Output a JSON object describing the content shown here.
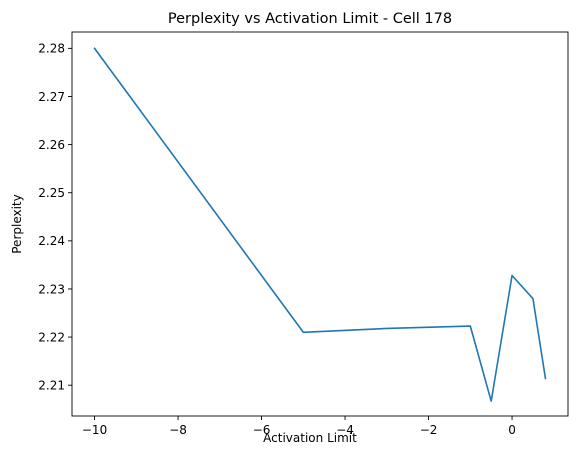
{
  "chart_data": {
    "type": "line",
    "title": "Perplexity vs Activation Limit - Cell 178",
    "xlabel": "Activation Limit",
    "ylabel": "Perplexity",
    "xlim": [
      -10.54,
      1.34
    ],
    "ylim": [
      2.2036,
      2.2834
    ],
    "xticks": [
      -10,
      -8,
      -6,
      -4,
      -2,
      0
    ],
    "xtick_labels": [
      "−10",
      "−8",
      "−6",
      "−4",
      "−2",
      "0"
    ],
    "yticks": [
      2.21,
      2.22,
      2.23,
      2.24,
      2.25,
      2.26,
      2.27,
      2.28
    ],
    "ytick_labels": [
      "2.21",
      "2.22",
      "2.23",
      "2.24",
      "2.25",
      "2.26",
      "2.27",
      "2.28"
    ],
    "grid": false,
    "series": [
      {
        "color": "#1f77b4",
        "x": [
          -10,
          -5,
          -3,
          -1,
          -0.5,
          0,
          0.5,
          0.8
        ],
        "y": [
          2.28,
          2.221,
          2.2218,
          2.2223,
          2.2067,
          2.2328,
          2.228,
          2.2114
        ]
      }
    ]
  }
}
